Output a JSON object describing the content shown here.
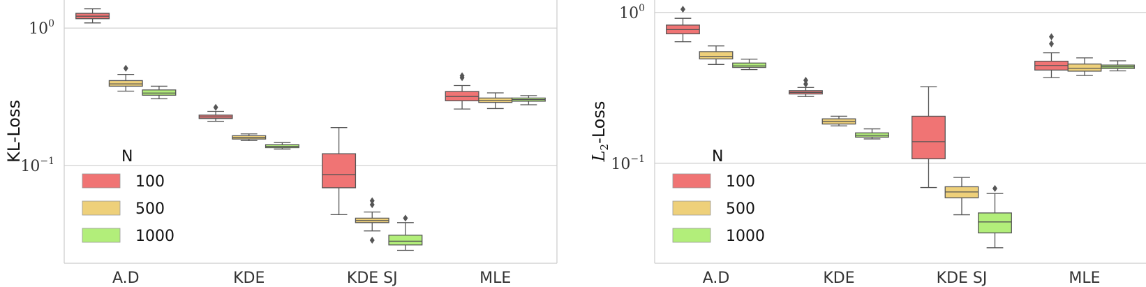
{
  "chart_data": [
    {
      "type": "box",
      "ylabel": "KL-Loss",
      "yscale": "log",
      "ylim": [
        0.0195,
        1.6
      ],
      "yticks": [
        {
          "value": 0.1,
          "base": "10",
          "exp": "−1"
        },
        {
          "value": 1.0,
          "base": "10",
          "exp": "0"
        }
      ],
      "categories": [
        "A.D",
        "KDE",
        "KDE SJ",
        "MLE"
      ],
      "legend": {
        "title": "N",
        "position": "lower-left"
      },
      "series": [
        {
          "name": "100",
          "color": "#f07474",
          "boxes": [
            {
              "whislo": 1.09,
              "q1": 1.17,
              "med": 1.22,
              "q3": 1.28,
              "whishi": 1.38,
              "fliers": []
            },
            {
              "whislo": 0.21,
              "q1": 0.22,
              "med": 0.226,
              "q3": 0.233,
              "whishi": 0.248,
              "fliers": [
                0.265
              ]
            },
            {
              "whislo": 0.044,
              "q1": 0.069,
              "med": 0.086,
              "q3": 0.122,
              "whishi": 0.189,
              "fliers": []
            },
            {
              "whislo": 0.258,
              "q1": 0.296,
              "med": 0.318,
              "q3": 0.346,
              "whishi": 0.382,
              "fliers": [
                0.436,
                0.45
              ]
            }
          ]
        },
        {
          "name": "500",
          "color": "#eed07a",
          "boxes": [
            {
              "whislo": 0.348,
              "q1": 0.378,
              "med": 0.393,
              "q3": 0.415,
              "whishi": 0.46,
              "fliers": [
                0.51
              ]
            },
            {
              "whislo": 0.152,
              "q1": 0.156,
              "med": 0.16,
              "q3": 0.165,
              "whishi": 0.17,
              "fliers": []
            },
            {
              "whislo": 0.0335,
              "q1": 0.0385,
              "med": 0.0399,
              "q3": 0.0415,
              "whishi": 0.046,
              "fliers": [
                0.0287,
                0.052,
                0.0555
              ]
            },
            {
              "whislo": 0.26,
              "q1": 0.288,
              "med": 0.298,
              "q3": 0.31,
              "whishi": 0.338,
              "fliers": []
            }
          ]
        },
        {
          "name": "1000",
          "color": "#b2ee7a",
          "boxes": [
            {
              "whislo": 0.306,
              "q1": 0.325,
              "med": 0.337,
              "q3": 0.355,
              "whishi": 0.378,
              "fliers": []
            },
            {
              "whislo": 0.132,
              "q1": 0.135,
              "med": 0.138,
              "q3": 0.142,
              "whishi": 0.147,
              "fliers": []
            },
            {
              "whislo": 0.0242,
              "q1": 0.0265,
              "med": 0.0282,
              "q3": 0.0312,
              "whishi": 0.0385,
              "fliers": [
                0.0415
              ]
            },
            {
              "whislo": 0.277,
              "q1": 0.294,
              "med": 0.302,
              "q3": 0.31,
              "whishi": 0.323,
              "fliers": []
            }
          ]
        }
      ]
    },
    {
      "type": "box",
      "ylabel": "L",
      "ylabel_sub": "2",
      "ylabel_rest": "-Loss",
      "yscale": "log",
      "ylim": [
        0.0217,
        1.21
      ],
      "yticks": [
        {
          "value": 0.1,
          "base": "10",
          "exp": "−1"
        },
        {
          "value": 1.0,
          "base": "10",
          "exp": "0"
        }
      ],
      "categories": [
        "A.D",
        "KDE",
        "KDE SJ",
        "MLE"
      ],
      "legend": {
        "title": "N",
        "position": "lower-left"
      },
      "series": [
        {
          "name": "100",
          "color": "#f07474",
          "boxes": [
            {
              "whislo": 0.64,
              "q1": 0.722,
              "med": 0.77,
              "q3": 0.825,
              "whishi": 0.915,
              "fliers": [
                1.05
              ]
            },
            {
              "whislo": 0.277,
              "q1": 0.288,
              "med": 0.295,
              "q3": 0.303,
              "whishi": 0.318,
              "fliers": [
                0.335,
                0.355
              ]
            },
            {
              "whislo": 0.069,
              "q1": 0.107,
              "med": 0.139,
              "q3": 0.205,
              "whishi": 0.322,
              "fliers": []
            },
            {
              "whislo": 0.37,
              "q1": 0.415,
              "med": 0.445,
              "q3": 0.475,
              "whishi": 0.54,
              "fliers": [
                0.62,
                0.69
              ]
            }
          ]
        },
        {
          "name": "500",
          "color": "#eed07a",
          "boxes": [
            {
              "whislo": 0.452,
              "q1": 0.492,
              "med": 0.512,
              "q3": 0.55,
              "whishi": 0.6,
              "fliers": []
            },
            {
              "whislo": 0.177,
              "q1": 0.182,
              "med": 0.189,
              "q3": 0.197,
              "whishi": 0.205,
              "fliers": []
            },
            {
              "whislo": 0.0455,
              "q1": 0.059,
              "med": 0.0645,
              "q3": 0.0698,
              "whishi": 0.0805,
              "fliers": []
            },
            {
              "whislo": 0.382,
              "q1": 0.408,
              "med": 0.426,
              "q3": 0.455,
              "whishi": 0.5,
              "fliers": []
            }
          ]
        },
        {
          "name": "1000",
          "color": "#b2ee7a",
          "boxes": [
            {
              "whislo": 0.418,
              "q1": 0.432,
              "med": 0.442,
              "q3": 0.462,
              "whishi": 0.49,
              "fliers": []
            },
            {
              "whislo": 0.145,
              "q1": 0.149,
              "med": 0.153,
              "q3": 0.159,
              "whishi": 0.169,
              "fliers": []
            },
            {
              "whislo": 0.0275,
              "q1": 0.0345,
              "med": 0.0408,
              "q3": 0.0468,
              "whishi": 0.063,
              "fliers": [
                0.068
              ]
            },
            {
              "whislo": 0.41,
              "q1": 0.425,
              "med": 0.436,
              "q3": 0.448,
              "whishi": 0.478,
              "fliers": []
            }
          ]
        }
      ]
    }
  ]
}
